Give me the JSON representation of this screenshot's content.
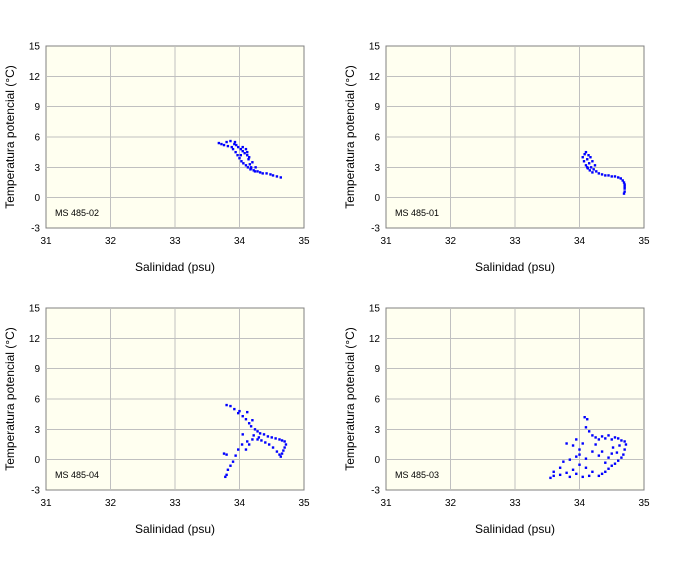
{
  "chart_data": [
    {
      "type": "scatter",
      "station_label": "MS 485-02",
      "xlabel": "Salinidad (psu)",
      "ylabel": "Temperatura potencial (°C)",
      "xlim": [
        31,
        35
      ],
      "ylim": [
        -3,
        15
      ],
      "xticks": [
        "31",
        "32",
        "33",
        "34",
        "35"
      ],
      "yticks": [
        "15",
        "12",
        "9",
        "6",
        "3",
        "0",
        "-3"
      ],
      "series": [
        {
          "name": "MS 485-02",
          "color": "#0000ff",
          "points": [
            [
              33.68,
              5.4
            ],
            [
              33.72,
              5.3
            ],
            [
              33.76,
              5.2
            ],
            [
              33.8,
              5.5
            ],
            [
              33.82,
              5.1
            ],
            [
              33.86,
              5.6
            ],
            [
              33.88,
              5.0
            ],
            [
              33.9,
              4.8
            ],
            [
              33.92,
              5.3
            ],
            [
              33.94,
              4.5
            ],
            [
              33.95,
              5.2
            ],
            [
              33.97,
              4.2
            ],
            [
              33.98,
              5.0
            ],
            [
              34.0,
              3.9
            ],
            [
              34.02,
              4.8
            ],
            [
              34.03,
              3.6
            ],
            [
              34.05,
              4.6
            ],
            [
              34.06,
              3.4
            ],
            [
              34.08,
              4.4
            ],
            [
              34.1,
              3.2
            ],
            [
              34.12,
              4.2
            ],
            [
              34.13,
              3.0
            ],
            [
              34.15,
              4.0
            ],
            [
              34.17,
              2.8
            ],
            [
              34.2,
              3.5
            ],
            [
              34.22,
              2.7
            ],
            [
              34.25,
              3.0
            ],
            [
              34.28,
              2.6
            ],
            [
              34.32,
              2.5
            ],
            [
              34.36,
              2.4
            ],
            [
              34.42,
              2.4
            ],
            [
              34.48,
              2.3
            ],
            [
              34.52,
              2.2
            ],
            [
              34.58,
              2.1
            ],
            [
              34.64,
              2.0
            ],
            [
              34.1,
              4.8
            ],
            [
              34.12,
              4.5
            ],
            [
              34.14,
              3.8
            ],
            [
              34.16,
              3.3
            ],
            [
              34.18,
              3.0
            ],
            [
              34.05,
              5.0
            ],
            [
              33.93,
              5.5
            ],
            [
              34.02,
              4.2
            ],
            [
              34.18,
              2.9
            ],
            [
              34.24,
              2.6
            ]
          ]
        }
      ]
    },
    {
      "type": "scatter",
      "station_label": "MS 485-01",
      "xlabel": "Salinidad (psu)",
      "ylabel": "Temperatura potencial (°C)",
      "xlim": [
        31,
        35
      ],
      "ylim": [
        -3,
        15
      ],
      "xticks": [
        "31",
        "32",
        "33",
        "34",
        "35"
      ],
      "yticks": [
        "15",
        "12",
        "9",
        "6",
        "3",
        "0",
        "-3"
      ],
      "series": [
        {
          "name": "MS 485-01",
          "color": "#0000ff",
          "points": [
            [
              34.05,
              4.0
            ],
            [
              34.07,
              3.6
            ],
            [
              34.08,
              4.3
            ],
            [
              34.1,
              3.2
            ],
            [
              34.1,
              4.5
            ],
            [
              34.12,
              3.8
            ],
            [
              34.13,
              2.9
            ],
            [
              34.14,
              4.2
            ],
            [
              34.15,
              3.4
            ],
            [
              34.17,
              4.0
            ],
            [
              34.18,
              3.0
            ],
            [
              34.2,
              3.6
            ],
            [
              34.22,
              2.8
            ],
            [
              34.24,
              3.2
            ],
            [
              34.26,
              2.6
            ],
            [
              34.3,
              2.4
            ],
            [
              34.35,
              2.3
            ],
            [
              34.4,
              2.2
            ],
            [
              34.45,
              2.2
            ],
            [
              34.5,
              2.1
            ],
            [
              34.55,
              2.1
            ],
            [
              34.6,
              2.0
            ],
            [
              34.64,
              1.9
            ],
            [
              34.67,
              1.7
            ],
            [
              34.69,
              1.5
            ],
            [
              34.7,
              1.3
            ],
            [
              34.7,
              1.1
            ],
            [
              34.7,
              0.9
            ],
            [
              34.7,
              0.6
            ],
            [
              34.69,
              0.4
            ],
            [
              34.16,
              2.7
            ],
            [
              34.12,
              3.0
            ],
            [
              34.2,
              2.5
            ]
          ]
        }
      ]
    },
    {
      "type": "scatter",
      "station_label": "MS 485-04",
      "xlabel": "Salinidad (psu)",
      "ylabel": "Temperatura potencial (°C)",
      "xlim": [
        31,
        35
      ],
      "ylim": [
        -3,
        15
      ],
      "xticks": [
        "31",
        "32",
        "33",
        "34",
        "35"
      ],
      "yticks": [
        "15",
        "12",
        "9",
        "6",
        "3",
        "0",
        "-3"
      ],
      "series": [
        {
          "name": "MS 485-04",
          "color": "#0000ff",
          "points": [
            [
              33.8,
              5.4
            ],
            [
              33.86,
              5.3
            ],
            [
              33.92,
              5.0
            ],
            [
              33.98,
              4.6
            ],
            [
              34.0,
              4.8
            ],
            [
              34.05,
              4.3
            ],
            [
              34.1,
              4.0
            ],
            [
              34.12,
              4.7
            ],
            [
              34.15,
              3.6
            ],
            [
              34.18,
              3.3
            ],
            [
              34.2,
              3.9
            ],
            [
              34.24,
              3.0
            ],
            [
              34.28,
              2.8
            ],
            [
              34.32,
              2.6
            ],
            [
              34.38,
              2.5
            ],
            [
              34.44,
              2.3
            ],
            [
              34.5,
              2.2
            ],
            [
              34.56,
              2.1
            ],
            [
              34.62,
              2.0
            ],
            [
              34.66,
              1.9
            ],
            [
              34.7,
              1.8
            ],
            [
              34.72,
              1.5
            ],
            [
              34.7,
              1.2
            ],
            [
              34.68,
              0.9
            ],
            [
              34.66,
              0.6
            ],
            [
              34.64,
              0.3
            ],
            [
              34.62,
              0.5
            ],
            [
              34.58,
              0.8
            ],
            [
              34.52,
              1.2
            ],
            [
              34.46,
              1.5
            ],
            [
              34.4,
              1.7
            ],
            [
              34.34,
              1.9
            ],
            [
              34.28,
              2.0
            ],
            [
              34.2,
              2.0
            ],
            [
              34.12,
              1.8
            ],
            [
              34.04,
              1.5
            ],
            [
              33.98,
              1.0
            ],
            [
              33.94,
              0.4
            ],
            [
              33.9,
              -0.2
            ],
            [
              33.86,
              -0.6
            ],
            [
              33.82,
              -1.0
            ],
            [
              33.8,
              -1.5
            ],
            [
              33.78,
              -1.7
            ],
            [
              33.76,
              0.6
            ],
            [
              33.8,
              0.5
            ],
            [
              34.1,
              1.0
            ],
            [
              34.15,
              1.5
            ],
            [
              34.05,
              2.5
            ],
            [
              34.22,
              2.4
            ],
            [
              34.3,
              2.2
            ]
          ]
        }
      ]
    },
    {
      "type": "scatter",
      "station_label": "MS 485-03",
      "xlabel": "Salinidad (psu)",
      "ylabel": "Temperatura potencial (°C)",
      "xlim": [
        31,
        35
      ],
      "ylim": [
        -3,
        15
      ],
      "xticks": [
        "31",
        "32",
        "33",
        "34",
        "35"
      ],
      "yticks": [
        "15",
        "12",
        "9",
        "6",
        "3",
        "0",
        "-3"
      ],
      "series": [
        {
          "name": "MS 485-03",
          "color": "#0000ff",
          "points": [
            [
              34.08,
              4.2
            ],
            [
              34.12,
              4.0
            ],
            [
              34.1,
              3.2
            ],
            [
              34.15,
              2.8
            ],
            [
              34.2,
              2.4
            ],
            [
              34.25,
              2.2
            ],
            [
              34.3,
              2.0
            ],
            [
              34.35,
              2.3
            ],
            [
              34.4,
              2.1
            ],
            [
              34.45,
              2.4
            ],
            [
              34.5,
              2.0
            ],
            [
              34.55,
              2.2
            ],
            [
              34.6,
              2.1
            ],
            [
              34.65,
              1.9
            ],
            [
              34.7,
              1.8
            ],
            [
              34.72,
              1.5
            ],
            [
              34.7,
              1.0
            ],
            [
              34.68,
              0.5
            ],
            [
              34.65,
              0.2
            ],
            [
              34.6,
              -0.1
            ],
            [
              34.55,
              -0.4
            ],
            [
              34.5,
              -0.6
            ],
            [
              34.45,
              -0.9
            ],
            [
              34.4,
              -1.2
            ],
            [
              34.35,
              -1.4
            ],
            [
              34.3,
              -1.6
            ],
            [
              34.2,
              -1.2
            ],
            [
              34.1,
              -0.8
            ],
            [
              34.0,
              -0.5
            ],
            [
              33.9,
              -1.0
            ],
            [
              33.8,
              -1.3
            ],
            [
              33.7,
              -1.5
            ],
            [
              33.6,
              -1.6
            ],
            [
              33.55,
              -1.8
            ],
            [
              33.6,
              -1.2
            ],
            [
              33.7,
              -0.8
            ],
            [
              33.75,
              -0.2
            ],
            [
              33.85,
              0.0
            ],
            [
              33.95,
              0.3
            ],
            [
              34.0,
              1.0
            ],
            [
              34.05,
              1.6
            ],
            [
              33.9,
              1.4
            ],
            [
              33.8,
              1.6
            ],
            [
              34.2,
              0.8
            ],
            [
              34.3,
              0.4
            ],
            [
              34.25,
              1.5
            ],
            [
              34.35,
              0.8
            ],
            [
              34.45,
              0.2
            ],
            [
              34.52,
              1.2
            ],
            [
              34.58,
              0.7
            ],
            [
              34.15,
              -1.6
            ],
            [
              34.05,
              -1.7
            ],
            [
              33.95,
              -1.4
            ],
            [
              33.85,
              -1.7
            ],
            [
              34.4,
              -0.3
            ],
            [
              34.5,
              0.6
            ],
            [
              34.62,
              1.4
            ],
            [
              34.1,
              0.1
            ],
            [
              33.95,
              2.0
            ],
            [
              34.0,
              0.5
            ]
          ]
        }
      ]
    }
  ]
}
